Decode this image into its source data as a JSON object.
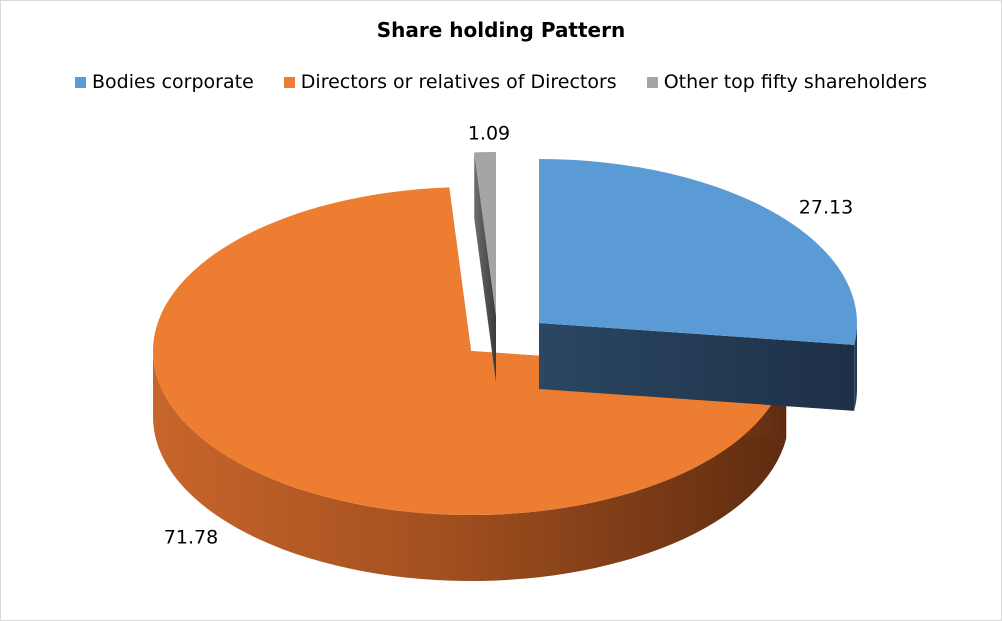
{
  "chart_data": {
    "type": "pie",
    "title": "Share holding Pattern",
    "legend_position": "top",
    "categories": [
      "Bodies corporate",
      "Directors or relatives of Directors",
      "Other top fifty shareholders"
    ],
    "values": [
      27.13,
      71.78,
      1.09
    ],
    "data_labels": [
      "27.13",
      "71.78",
      "1.09"
    ],
    "colors": [
      "#5b9bd5",
      "#ed7d31",
      "#a5a5a5"
    ],
    "three_d": true,
    "exploded": true
  }
}
